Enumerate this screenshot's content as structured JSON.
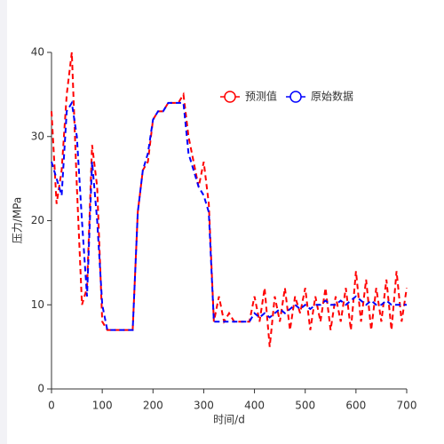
{
  "chart_data": {
    "type": "line",
    "xlabel": "时间/d",
    "ylabel": "压力/MPa",
    "x": [
      0,
      10,
      20,
      30,
      40,
      50,
      60,
      70,
      80,
      90,
      100,
      110,
      120,
      130,
      140,
      150,
      160,
      170,
      180,
      190,
      200,
      210,
      220,
      230,
      240,
      250,
      260,
      270,
      280,
      290,
      300,
      310,
      320,
      330,
      340,
      350,
      360,
      370,
      380,
      390,
      400,
      410,
      420,
      430,
      440,
      450,
      460,
      470,
      480,
      490,
      500,
      510,
      520,
      530,
      540,
      550,
      560,
      570,
      580,
      590,
      600,
      610,
      620,
      630,
      640,
      650,
      660,
      670,
      680,
      690,
      700
    ],
    "series": [
      {
        "name": "预测值",
        "color": "#ff0000",
        "values": [
          33,
          22,
          26,
          35,
          40,
          24,
          10,
          12,
          29,
          24,
          8,
          7,
          7,
          7,
          7,
          7,
          7,
          21,
          26,
          27,
          32,
          33,
          33,
          34,
          34,
          34,
          35,
          30,
          27,
          24,
          27,
          22,
          8,
          11,
          8,
          9,
          8,
          8,
          8,
          8,
          11,
          8,
          12,
          5,
          11,
          8,
          12,
          7,
          11,
          9,
          12,
          7,
          11,
          8,
          12,
          7,
          11,
          8,
          12,
          7,
          14,
          8,
          13,
          7,
          12,
          8,
          13,
          7,
          14,
          8,
          12
        ]
      },
      {
        "name": "原始数据",
        "color": "#0000ff",
        "values": [
          27,
          25,
          23,
          33,
          34,
          30,
          20,
          11,
          27,
          20,
          10,
          7,
          7,
          7,
          7,
          7,
          7,
          21,
          26,
          28,
          32,
          33,
          33,
          34,
          34,
          34,
          34,
          28,
          26,
          24,
          23,
          21,
          8,
          8,
          8,
          8,
          8,
          8,
          8,
          8,
          9,
          8.5,
          9,
          8.5,
          9,
          9.5,
          9,
          9.5,
          10,
          9.5,
          10,
          9.5,
          10,
          10,
          10.5,
          10,
          10,
          10.5,
          10,
          10.5,
          11,
          10.5,
          10,
          10.5,
          10,
          10,
          10.5,
          10,
          10,
          10,
          10
        ]
      }
    ],
    "xlim": [
      0,
      700
    ],
    "xticks": [
      0,
      100,
      200,
      300,
      400,
      500,
      600,
      700
    ],
    "ylim": [
      0,
      40
    ],
    "yticks": [
      0,
      10,
      20,
      30,
      40
    ],
    "grid": false,
    "legend": "top-right"
  }
}
